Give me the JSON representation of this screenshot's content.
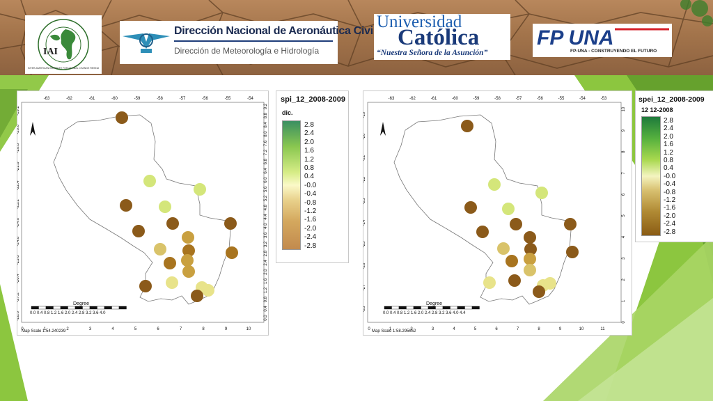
{
  "banner": {
    "iai": {
      "text": "IAI",
      "ring_text": "INTER-AMERICAN INSTITUTE FOR GLOBAL CHANGE RESEARCH"
    },
    "dinac": {
      "title": "Dirección Nacional de Aeronáutica Civil",
      "subtitle": "Dirección de Meteorología e Hidrología"
    },
    "uc": {
      "line1": "Universidad",
      "line2": "Católica",
      "line3": "“Nuestra Señora de la Asunción”"
    },
    "fpuna": {
      "text": "FP UNA",
      "tagline": "FP-UNA - CONSTRUYENDO EL FUTURO"
    }
  },
  "colors": {
    "accent_green": "#8cc63f",
    "banner_soil": "#a3744b",
    "marker_dark": "#8b5a1a",
    "marker_light": "#e6e082"
  },
  "map_left": {
    "legend_title": "spi_12_2008-2009",
    "legend_sub": "dic.",
    "legend_labels": [
      "2.8",
      "2.4",
      "2.0",
      "1.6",
      "1.2",
      "0.8",
      "0.4",
      "-0.0",
      "-0.4",
      "-0.8",
      "-1.2",
      "-1.6",
      "-2.0",
      "-2.4",
      "-2.8"
    ],
    "top_ticks": [
      "-63",
      "-62",
      "-61",
      "-60",
      "-59",
      "-58",
      "-57",
      "-56",
      "-55",
      "-54"
    ],
    "left_ticks": [
      "-19.2",
      "-20.0",
      "-20.8",
      "-21.6",
      "-22.4",
      "-23.2",
      "-24.0",
      "-24.8",
      "-25.6",
      "-26.4",
      "-27.2",
      "-28.0"
    ],
    "right_ticks": [
      "9.2",
      "8.8",
      "8.4",
      "8.0",
      "7.6",
      "7.2",
      "6.8",
      "6.4",
      "6.0",
      "5.6",
      "5.2",
      "4.8",
      "4.4",
      "4.0",
      "3.6",
      "3.2",
      "2.8",
      "2.4",
      "2.0",
      "1.6",
      "1.2",
      "0.8",
      "0.4",
      "0.0"
    ],
    "bottom_ticks": [
      "0",
      "1",
      "2",
      "3",
      "4",
      "5",
      "6",
      "7",
      "8",
      "9",
      "10"
    ],
    "scale_title": "Degree",
    "scale_labels": "0.0 0.4 0.8 1.2 1.6 2.0 2.4 2.8 3.2 3.6 4.0",
    "map_scale": "Map Scale 1:54.240239"
  },
  "map_right": {
    "legend_title": "spei_12_2008-2009",
    "legend_sub": "12 12-2008",
    "legend_labels": [
      "2.8",
      "2.4",
      "2.0",
      "1.6",
      "1.2",
      "0.8",
      "0.4",
      "-0.0",
      "-0.4",
      "-0.8",
      "-1.2",
      "-1.6",
      "-2.0",
      "-2.4",
      "-2.8"
    ],
    "top_ticks": [
      "-63",
      "-62",
      "-61",
      "-60",
      "-59",
      "-58",
      "-57",
      "-56",
      "-55",
      "-54",
      "-53"
    ],
    "left_ticks": [
      "-19",
      "-20",
      "-21",
      "-22",
      "-23",
      "-24",
      "-25",
      "-26",
      "-27",
      "-28"
    ],
    "right_ticks": [
      "10",
      "9",
      "8",
      "7",
      "6",
      "5",
      "4",
      "3",
      "2",
      "1",
      "0"
    ],
    "bottom_ticks": [
      "0",
      "1",
      "2",
      "3",
      "4",
      "5",
      "6",
      "7",
      "8",
      "9",
      "10",
      "11"
    ],
    "scale_title": "Degree",
    "scale_labels": "0.0 0.4 0.8 1.2 1.6 2.0 2.4 2.8 3.2 3.6 4.0 4.4",
    "map_scale": "Map Scale 1:58.295652"
  }
}
